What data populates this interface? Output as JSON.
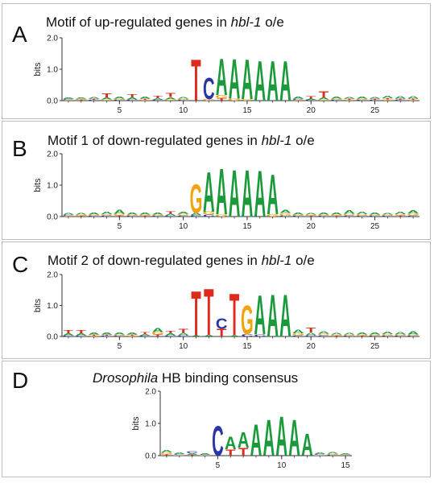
{
  "colors": {
    "A": "#1a9a3a",
    "C": "#2a36a8",
    "G": "#f2a20f",
    "T": "#dd2a1a"
  },
  "panels": [
    {
      "letter": "A",
      "title_pre": "Motif of up-regulated genes in ",
      "title_em": "hbl-1",
      "title_post": " o/e",
      "ylabel": "bits",
      "yticks": [
        "0.0",
        "1.0",
        "2.0"
      ],
      "xticks": [
        "5",
        "10",
        "15",
        "20",
        "25"
      ],
      "length": 28,
      "ymax": 2.0,
      "columns": [
        [
          [
            "G",
            0.03
          ],
          [
            "C",
            0.03
          ],
          [
            "A",
            0.04
          ]
        ],
        [
          [
            "T",
            0.03
          ],
          [
            "G",
            0.03
          ],
          [
            "A",
            0.04
          ]
        ],
        [
          [
            "C",
            0.03
          ],
          [
            "T",
            0.04
          ],
          [
            "A",
            0.05
          ]
        ],
        [
          [
            "G",
            0.04
          ],
          [
            "A",
            0.06
          ],
          [
            "T",
            0.13
          ]
        ],
        [
          [
            "C",
            0.03
          ],
          [
            "G",
            0.04
          ],
          [
            "A",
            0.06
          ]
        ],
        [
          [
            "C",
            0.04
          ],
          [
            "A",
            0.06
          ],
          [
            "T",
            0.1
          ]
        ],
        [
          [
            "G",
            0.03
          ],
          [
            "T",
            0.04
          ],
          [
            "A",
            0.06
          ]
        ],
        [
          [
            "C",
            0.03
          ],
          [
            "A",
            0.05
          ],
          [
            "T",
            0.08
          ]
        ],
        [
          [
            "G",
            0.04
          ],
          [
            "A",
            0.07
          ],
          [
            "T",
            0.14
          ]
        ],
        [
          [
            "C",
            0.03
          ],
          [
            "G",
            0.04
          ],
          [
            "A",
            0.05
          ]
        ],
        [
          [
            "T",
            1.35
          ]
        ],
        [
          [
            "G",
            0.05
          ],
          [
            "C",
            0.7
          ]
        ],
        [
          [
            "T",
            0.08
          ],
          [
            "G",
            0.1
          ],
          [
            "A",
            1.2
          ]
        ],
        [
          [
            "G",
            0.06
          ],
          [
            "A",
            1.3
          ]
        ],
        [
          [
            "G",
            0.05
          ],
          [
            "A",
            1.3
          ]
        ],
        [
          [
            "A",
            1.3
          ]
        ],
        [
          [
            "A",
            1.3
          ]
        ],
        [
          [
            "A",
            1.3
          ]
        ],
        [
          [
            "G",
            0.03
          ],
          [
            "C",
            0.04
          ],
          [
            "A",
            0.07
          ]
        ],
        [
          [
            "C",
            0.03
          ],
          [
            "A",
            0.04
          ],
          [
            "T",
            0.08
          ]
        ],
        [
          [
            "G",
            0.04
          ],
          [
            "A",
            0.06
          ],
          [
            "T",
            0.2
          ]
        ],
        [
          [
            "C",
            0.03
          ],
          [
            "G",
            0.04
          ],
          [
            "A",
            0.06
          ]
        ],
        [
          [
            "G",
            0.03
          ],
          [
            "T",
            0.03
          ],
          [
            "A",
            0.05
          ]
        ],
        [
          [
            "C",
            0.03
          ],
          [
            "G",
            0.04
          ],
          [
            "A",
            0.07
          ]
        ],
        [
          [
            "C",
            0.03
          ],
          [
            "T",
            0.04
          ],
          [
            "A",
            0.05
          ]
        ],
        [
          [
            "G",
            0.04
          ],
          [
            "T",
            0.04
          ],
          [
            "A",
            0.09
          ]
        ],
        [
          [
            "C",
            0.03
          ],
          [
            "T",
            0.04
          ],
          [
            "A",
            0.08
          ]
        ],
        [
          [
            "G",
            0.03
          ],
          [
            "T",
            0.04
          ],
          [
            "A",
            0.08
          ]
        ]
      ]
    },
    {
      "letter": "B",
      "title_pre": "Motif 1 of down-regulated genes in ",
      "title_em": "hbl-1",
      "title_post": " o/e",
      "ylabel": "bits",
      "yticks": [
        "0.0",
        "1.0",
        "2.0"
      ],
      "xticks": [
        "5",
        "10",
        "15",
        "20",
        "25"
      ],
      "length": 28,
      "ymax": 2.0,
      "columns": [
        [
          [
            "G",
            0.03
          ],
          [
            "C",
            0.03
          ],
          [
            "A",
            0.05
          ]
        ],
        [
          [
            "T",
            0.03
          ],
          [
            "G",
            0.03
          ],
          [
            "A",
            0.05
          ]
        ],
        [
          [
            "C",
            0.03
          ],
          [
            "G",
            0.04
          ],
          [
            "A",
            0.07
          ]
        ],
        [
          [
            "C",
            0.04
          ],
          [
            "G",
            0.04
          ],
          [
            "A",
            0.09
          ]
        ],
        [
          [
            "T",
            0.04
          ],
          [
            "G",
            0.05
          ],
          [
            "A",
            0.13
          ]
        ],
        [
          [
            "C",
            0.03
          ],
          [
            "G",
            0.04
          ],
          [
            "A",
            0.06
          ]
        ],
        [
          [
            "T",
            0.03
          ],
          [
            "G",
            0.04
          ],
          [
            "A",
            0.06
          ]
        ],
        [
          [
            "C",
            0.03
          ],
          [
            "G",
            0.04
          ],
          [
            "A",
            0.06
          ]
        ],
        [
          [
            "C",
            0.04
          ],
          [
            "A",
            0.05
          ],
          [
            "T",
            0.08
          ]
        ],
        [
          [
            "C",
            0.04
          ],
          [
            "G",
            0.05
          ],
          [
            "A",
            0.07
          ]
        ],
        [
          [
            "C",
            0.05
          ],
          [
            "A",
            0.07
          ],
          [
            "G",
            0.95
          ]
        ],
        [
          [
            "C",
            0.06
          ],
          [
            "G",
            0.1
          ],
          [
            "A",
            1.3
          ]
        ],
        [
          [
            "G",
            0.07
          ],
          [
            "A",
            1.5
          ]
        ],
        [
          [
            "A",
            1.55
          ]
        ],
        [
          [
            "A",
            1.55
          ]
        ],
        [
          [
            "A",
            1.5
          ]
        ],
        [
          [
            "G",
            0.08
          ],
          [
            "A",
            1.3
          ]
        ],
        [
          [
            "C",
            0.03
          ],
          [
            "G",
            0.08
          ],
          [
            "A",
            0.1
          ]
        ],
        [
          [
            "C",
            0.03
          ],
          [
            "G",
            0.04
          ],
          [
            "A",
            0.06
          ]
        ],
        [
          [
            "T",
            0.03
          ],
          [
            "G",
            0.04
          ],
          [
            "A",
            0.05
          ]
        ],
        [
          [
            "C",
            0.03
          ],
          [
            "G",
            0.04
          ],
          [
            "A",
            0.06
          ]
        ],
        [
          [
            "T",
            0.03
          ],
          [
            "G",
            0.04
          ],
          [
            "A",
            0.06
          ]
        ],
        [
          [
            "C",
            0.04
          ],
          [
            "G",
            0.05
          ],
          [
            "A",
            0.12
          ]
        ],
        [
          [
            "C",
            0.03
          ],
          [
            "G",
            0.05
          ],
          [
            "A",
            0.08
          ]
        ],
        [
          [
            "C",
            0.03
          ],
          [
            "G",
            0.04
          ],
          [
            "A",
            0.06
          ]
        ],
        [
          [
            "C",
            0.03
          ],
          [
            "G",
            0.04
          ],
          [
            "A",
            0.05
          ]
        ],
        [
          [
            "T",
            0.04
          ],
          [
            "G",
            0.04
          ],
          [
            "A",
            0.08
          ]
        ],
        [
          [
            "C",
            0.04
          ],
          [
            "G",
            0.06
          ],
          [
            "A",
            0.1
          ]
        ]
      ]
    },
    {
      "letter": "C",
      "title_pre": "Motif 2 of down-regulated genes in ",
      "title_em": "hbl-1",
      "title_post": " o/e",
      "ylabel": "bits",
      "yticks": [
        "0.0",
        "1.0",
        "2.0"
      ],
      "xticks": [
        "5",
        "10",
        "15",
        "20",
        "25"
      ],
      "length": 28,
      "ymax": 2.0,
      "columns": [
        [
          [
            "C",
            0.04
          ],
          [
            "A",
            0.06
          ],
          [
            "T",
            0.1
          ]
        ],
        [
          [
            "C",
            0.04
          ],
          [
            "A",
            0.06
          ],
          [
            "T",
            0.1
          ]
        ],
        [
          [
            "G",
            0.03
          ],
          [
            "T",
            0.03
          ],
          [
            "A",
            0.06
          ]
        ],
        [
          [
            "C",
            0.03
          ],
          [
            "T",
            0.04
          ],
          [
            "A",
            0.07
          ]
        ],
        [
          [
            "C",
            0.03
          ],
          [
            "G",
            0.04
          ],
          [
            "A",
            0.07
          ]
        ],
        [
          [
            "G",
            0.03
          ],
          [
            "T",
            0.04
          ],
          [
            "A",
            0.06
          ]
        ],
        [
          [
            "C",
            0.03
          ],
          [
            "A",
            0.05
          ],
          [
            "T",
            0.07
          ]
        ],
        [
          [
            "T",
            0.06
          ],
          [
            "G",
            0.08
          ],
          [
            "A",
            0.14
          ]
        ],
        [
          [
            "C",
            0.04
          ],
          [
            "A",
            0.07
          ],
          [
            "T",
            0.09
          ]
        ],
        [
          [
            "C",
            0.04
          ],
          [
            "A",
            0.08
          ],
          [
            "T",
            0.14
          ]
        ],
        [
          [
            "A",
            0.04
          ],
          [
            "T",
            1.48
          ]
        ],
        [
          [
            "A",
            0.05
          ],
          [
            "T",
            1.55
          ]
        ],
        [
          [
            "T",
            0.25
          ],
          [
            "C",
            0.35
          ]
        ],
        [
          [
            "A",
            0.04
          ],
          [
            "T",
            1.38
          ]
        ],
        [
          [
            "C",
            0.08
          ],
          [
            "G",
            0.95
          ]
        ],
        [
          [
            "C",
            0.06
          ],
          [
            "A",
            1.3
          ]
        ],
        [
          [
            "A",
            1.4
          ]
        ],
        [
          [
            "A",
            1.4
          ]
        ],
        [
          [
            "C",
            0.04
          ],
          [
            "G",
            0.06
          ],
          [
            "A",
            0.12
          ]
        ],
        [
          [
            "C",
            0.04
          ],
          [
            "A",
            0.09
          ],
          [
            "T",
            0.16
          ]
        ],
        [
          [
            "C",
            0.04
          ],
          [
            "G",
            0.05
          ],
          [
            "A",
            0.08
          ]
        ],
        [
          [
            "T",
            0.03
          ],
          [
            "G",
            0.04
          ],
          [
            "A",
            0.05
          ]
        ],
        [
          [
            "C",
            0.03
          ],
          [
            "G",
            0.04
          ],
          [
            "A",
            0.05
          ]
        ],
        [
          [
            "T",
            0.03
          ],
          [
            "G",
            0.04
          ],
          [
            "A",
            0.06
          ]
        ],
        [
          [
            "C",
            0.03
          ],
          [
            "G",
            0.04
          ],
          [
            "A",
            0.07
          ]
        ],
        [
          [
            "C",
            0.03
          ],
          [
            "G",
            0.05
          ],
          [
            "A",
            0.09
          ]
        ],
        [
          [
            "C",
            0.03
          ],
          [
            "G",
            0.04
          ],
          [
            "A",
            0.09
          ]
        ],
        [
          [
            "C",
            0.03
          ],
          [
            "G",
            0.04
          ],
          [
            "A",
            0.1
          ]
        ]
      ]
    },
    {
      "letter": "D",
      "title_pre": "",
      "title_em": "Drosophila",
      "title_post": " HB binding consensus",
      "ylabel": "bits",
      "yticks": [
        "0.0",
        "1.0",
        "2.0"
      ],
      "xticks": [
        "5",
        "10",
        "15"
      ],
      "length": 15,
      "ymax": 2.0,
      "columns": [
        [
          [
            "T",
            0.04
          ],
          [
            "G",
            0.06
          ],
          [
            "A",
            0.08
          ]
        ],
        [
          [
            "G",
            0.02
          ],
          [
            "C",
            0.03
          ],
          [
            "A",
            0.04
          ]
        ],
        [
          [
            "T",
            0.03
          ],
          [
            "A",
            0.04
          ],
          [
            "C",
            0.06
          ]
        ],
        [
          [
            "G",
            0.02
          ],
          [
            "C",
            0.02
          ],
          [
            "A",
            0.03
          ]
        ],
        [
          [
            "C",
            0.95
          ]
        ],
        [
          [
            "T",
            0.2
          ],
          [
            "A",
            0.4
          ]
        ],
        [
          [
            "T",
            0.25
          ],
          [
            "A",
            0.5
          ]
        ],
        [
          [
            "A",
            1.0
          ]
        ],
        [
          [
            "A",
            1.15
          ]
        ],
        [
          [
            "A",
            1.25
          ]
        ],
        [
          [
            "A",
            1.15
          ]
        ],
        [
          [
            "A",
            0.7
          ]
        ],
        [
          [
            "G",
            0.02
          ],
          [
            "C",
            0.03
          ],
          [
            "A",
            0.04
          ]
        ],
        [
          [
            "C",
            0.03
          ],
          [
            "G",
            0.03
          ],
          [
            "A",
            0.04
          ]
        ],
        [
          [
            "C",
            0.02
          ],
          [
            "G",
            0.02
          ],
          [
            "A",
            0.03
          ]
        ]
      ]
    }
  ]
}
